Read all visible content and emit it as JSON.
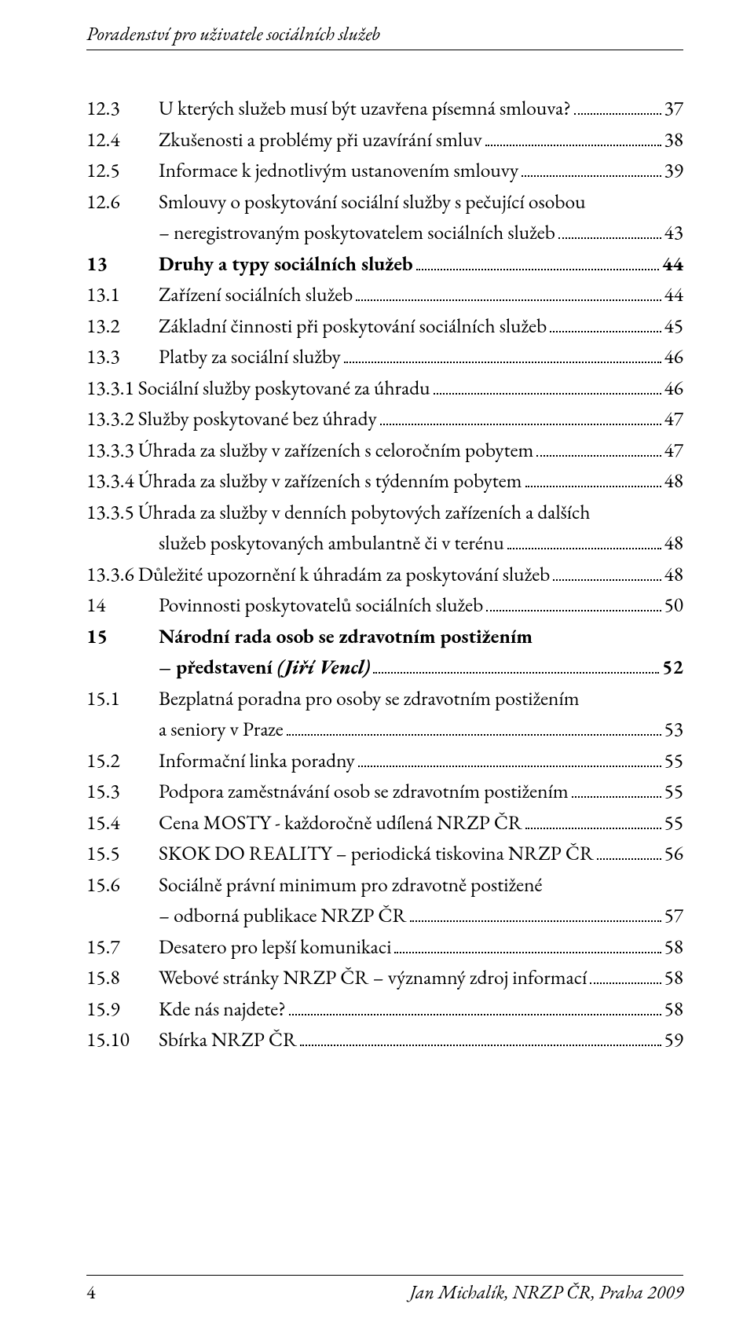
{
  "header": {
    "title": "Poradenství pro uživatele sociálních služeb"
  },
  "footer": {
    "page": "4",
    "credit": "Jan Michalík, NRZP ČR, Praha 2009"
  },
  "toc": [
    {
      "num": "12.3",
      "text": "U kterých služeb musí být uzavřena písemná smlouva?",
      "page": "37"
    },
    {
      "num": "12.4",
      "text": "Zkušenosti a problémy při uzavírání smluv",
      "page": "38"
    },
    {
      "num": "12.5",
      "text": "Informace k jednotlivým ustanovením smlouvy",
      "page": "39"
    },
    {
      "num": "12.6",
      "text": "Smlouvy o poskytování sociální služby s pečující osobou",
      "cont": "– neregistrovaným poskytovatelem sociálních služeb",
      "page": "43"
    },
    {
      "num": "13",
      "text": "Druhy a typy sociálních služeb",
      "page": "44",
      "bold": true
    },
    {
      "num": "13.1",
      "text": "Zařízení sociálních služeb",
      "page": "44"
    },
    {
      "num": "13.2",
      "text": "Základní činnosti při poskytování sociálních služeb",
      "page": "45"
    },
    {
      "num": "13.3",
      "text": "Platby za sociální služby",
      "page": "46"
    },
    {
      "num": "13.3.1",
      "text": "Sociální služby poskytované za úhradu",
      "page": "46",
      "merge": true
    },
    {
      "num": "13.3.2",
      "text": "Služby poskytované bez úhrady",
      "page": "47",
      "merge": true
    },
    {
      "num": "13.3.3",
      "text": "Úhrada za služby v zařízeních s celoročním pobytem",
      "page": "47",
      "merge": true
    },
    {
      "num": "13.3.4",
      "text": "Úhrada za služby v zařízeních s týdenním pobytem",
      "page": "48",
      "merge": true
    },
    {
      "num": "13.3.5",
      "text": "Úhrada za služby v denních pobytových zařízeních a dalších",
      "cont": "služeb poskytovaných ambulantně či v terénu",
      "page": "48",
      "merge": true
    },
    {
      "num": "13.3.6",
      "text": "Důležité upozornění k úhradám za poskytování služeb",
      "page": "48",
      "merge": true
    },
    {
      "num": "14",
      "text": "Povinnosti poskytovatelů sociálních služeb",
      "page": "50"
    },
    {
      "num": "15",
      "text": "Národní rada osob se zdravotním postižením",
      "cont": "– představení ",
      "contItalic": "(Jiří Vencl)",
      "page": "52",
      "bold": true
    },
    {
      "num": "15.1",
      "text": "Bezplatná poradna pro osoby se zdravotním postižením",
      "cont": "a seniory v Praze",
      "page": "53"
    },
    {
      "num": "15.2",
      "text": "Informační linka poradny",
      "page": "55"
    },
    {
      "num": "15.3",
      "text": "Podpora zaměstnávání osob se zdravotním postižením",
      "page": "55"
    },
    {
      "num": "15.4",
      "text": "Cena MOSTY - každoročně udílená NRZP ČR",
      "page": "55"
    },
    {
      "num": "15.5",
      "text": "SKOK DO REALITY – periodická tiskovina NRZP ČR",
      "page": "56"
    },
    {
      "num": "15.6",
      "text": "Sociálně právní minimum pro zdravotně postižené",
      "cont": "– odborná publikace NRZP ČR",
      "page": "57"
    },
    {
      "num": "15.7",
      "text": "Desatero pro lepší komunikaci",
      "page": "58"
    },
    {
      "num": "15.8",
      "text": "Webové stránky NRZP ČR – významný zdroj informací",
      "page": "58"
    },
    {
      "num": "15.9",
      "text": "Kde nás najdete?",
      "page": "58"
    },
    {
      "num": "15.10",
      "text": "Sbírka NRZP ČR",
      "page": "59"
    }
  ]
}
